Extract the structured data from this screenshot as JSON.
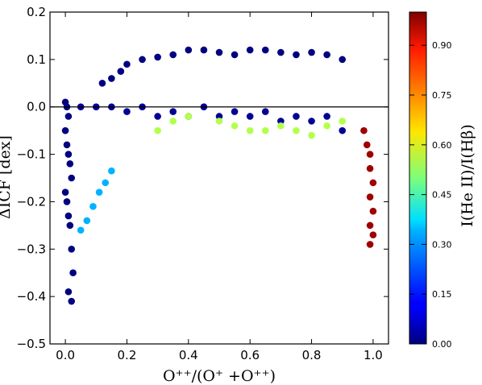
{
  "chart_data": {
    "type": "scatter",
    "title": "",
    "xlabel": "O⁺⁺/(O⁺ +O⁺⁺)",
    "ylabel": "ΔICF [dex]",
    "xlim": [
      -0.05,
      1.05
    ],
    "ylim": [
      -0.5,
      0.2
    ],
    "x_ticks": [
      "0.0",
      "0.2",
      "0.4",
      "0.6",
      "0.8",
      "1.0"
    ],
    "y_ticks": [
      "0.2",
      "0.1",
      "0.0",
      "−0.1",
      "−0.2",
      "−0.3",
      "−0.4",
      "−0.5"
    ],
    "reference_line_y": 0.0,
    "grid": false,
    "colorbar": {
      "label": "I(He II)/I(Hβ)",
      "ticks": [
        "0.00",
        "0.15",
        "0.30",
        "0.45",
        "0.60",
        "0.75",
        "0.90"
      ],
      "range": [
        0.0,
        1.0
      ],
      "colormap": "jet"
    },
    "series": [
      {
        "group": "upper-arc (He II ~0)",
        "color_value": 0.0,
        "x": [
          0.12,
          0.15,
          0.18,
          0.2,
          0.25,
          0.3,
          0.35,
          0.4,
          0.45,
          0.5,
          0.55,
          0.6,
          0.65,
          0.7,
          0.75,
          0.8,
          0.85,
          0.9
        ],
        "y": [
          0.05,
          0.06,
          0.075,
          0.09,
          0.1,
          0.105,
          0.11,
          0.12,
          0.12,
          0.115,
          0.11,
          0.12,
          0.12,
          0.115,
          0.11,
          0.115,
          0.11,
          0.1
        ]
      },
      {
        "group": "left-vertical (He II ~0)",
        "color_value": 0.0,
        "x": [
          0.0,
          0.005,
          0.01,
          0.0,
          0.005,
          0.01,
          0.015,
          0.02,
          0.0,
          0.005,
          0.01,
          0.015,
          0.02,
          0.025,
          0.01,
          0.02
        ],
        "y": [
          0.01,
          0.0,
          -0.02,
          -0.05,
          -0.08,
          -0.1,
          -0.12,
          -0.15,
          -0.18,
          -0.2,
          -0.23,
          -0.25,
          -0.3,
          -0.35,
          -0.39,
          -0.41
        ]
      },
      {
        "group": "near-zero band (He II ~0)",
        "color_value": 0.02,
        "x": [
          0.05,
          0.1,
          0.15,
          0.2,
          0.25,
          0.3,
          0.35,
          0.4,
          0.45,
          0.5,
          0.55,
          0.6,
          0.65,
          0.7,
          0.75,
          0.8,
          0.85,
          0.9
        ],
        "y": [
          0.0,
          0.0,
          0.0,
          -0.01,
          0.0,
          -0.02,
          -0.01,
          -0.02,
          0.0,
          -0.02,
          -0.01,
          -0.02,
          -0.01,
          -0.03,
          -0.02,
          -0.03,
          -0.02,
          -0.05
        ]
      },
      {
        "group": "left-low branch (He II ~0.3)",
        "color_value": 0.3,
        "x": [
          0.05,
          0.07,
          0.09,
          0.11,
          0.13,
          0.15
        ],
        "y": [
          -0.26,
          -0.24,
          -0.21,
          -0.18,
          -0.16,
          -0.135
        ]
      },
      {
        "group": "mid cloud (He II 0.3-0.7)",
        "color_value": 0.55,
        "x": [
          0.3,
          0.35,
          0.4,
          0.5,
          0.55,
          0.6,
          0.65,
          0.7,
          0.75,
          0.8,
          0.85,
          0.9
        ],
        "y": [
          -0.05,
          -0.03,
          -0.02,
          -0.03,
          -0.04,
          -0.05,
          -0.05,
          -0.04,
          -0.05,
          -0.06,
          -0.04,
          -0.03
        ]
      },
      {
        "group": "right edge (He II ~1.0)",
        "color_value": 0.97,
        "x": [
          0.97,
          0.98,
          0.99,
          0.99,
          1.0,
          0.99,
          1.0,
          0.99,
          1.0,
          0.99
        ],
        "y": [
          -0.05,
          -0.08,
          -0.1,
          -0.13,
          -0.16,
          -0.19,
          -0.22,
          -0.25,
          -0.27,
          -0.29
        ]
      }
    ]
  }
}
